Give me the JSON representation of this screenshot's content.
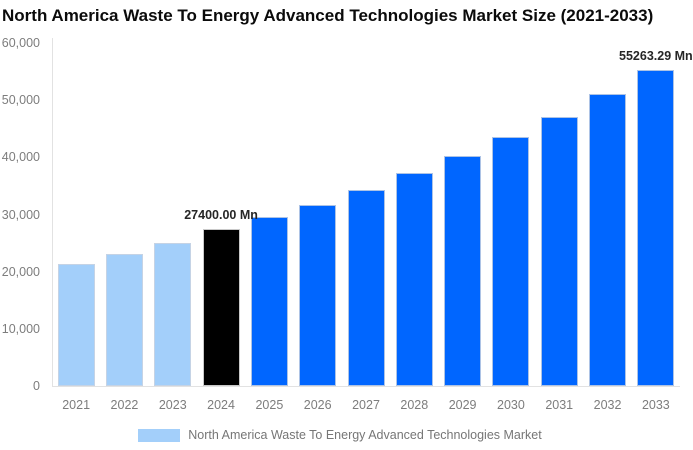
{
  "title": "North America Waste To Energy Advanced Technologies Market Size (2021-2033)",
  "legend": {
    "label": "North America Waste To Energy Advanced Technologies Market"
  },
  "colors": {
    "historical": "#A3CFFA",
    "base_year": "#000000",
    "forecast": "#0066FF",
    "axis_line": "#E2E2E2",
    "tick_text": "#7D7D7D",
    "value_label_text": "#262626",
    "title_text": "#0B0B0B"
  },
  "chart_data": {
    "type": "bar",
    "title": "North America Waste To Energy Advanced Technologies Market Size (2021-2033)",
    "categories": [
      "2021",
      "2022",
      "2023",
      "2024",
      "2025",
      "2026",
      "2027",
      "2028",
      "2029",
      "2030",
      "2031",
      "2032",
      "2033"
    ],
    "values": [
      21300,
      23100,
      25000,
      27400,
      29600,
      31700,
      34200,
      37200,
      40200,
      43500,
      47100,
      51000,
      55263.29
    ],
    "segments": [
      "historical",
      "historical",
      "historical",
      "base_year",
      "forecast",
      "forecast",
      "forecast",
      "forecast",
      "forecast",
      "forecast",
      "forecast",
      "forecast",
      "forecast"
    ],
    "series_name": "North America Waste To Energy Advanced Technologies Market",
    "data_labels": [
      {
        "category": "2024",
        "text": "27400.00 Mn"
      },
      {
        "category": "2033",
        "text": "55263.29 Mn"
      }
    ],
    "unit": "Mn",
    "xlabel": "",
    "ylabel": "",
    "ylim": [
      0,
      60000
    ],
    "yticks": [
      {
        "label": "0",
        "value": 0
      },
      {
        "label": "10,000",
        "value": 10000
      },
      {
        "label": "20,000",
        "value": 20000
      },
      {
        "label": "30,000",
        "value": 30000
      },
      {
        "label": "40,000",
        "value": 40000
      },
      {
        "label": "50,000",
        "value": 50000
      },
      {
        "label": "60,000",
        "value": 60000
      }
    ],
    "grid": false,
    "legend_position": "bottom"
  }
}
